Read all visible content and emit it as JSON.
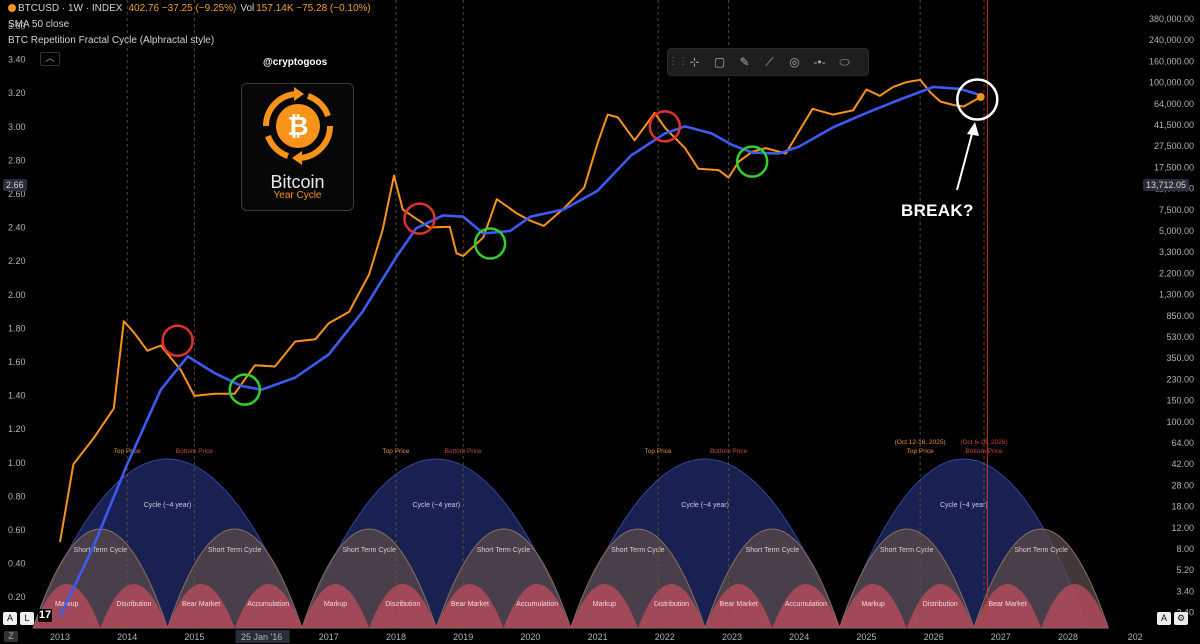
{
  "header": {
    "symbol": "BTCUSD · 1W · INDEX",
    "price": "402.76  −37.25 (−9.25%)",
    "vol_label": "Vol",
    "vol_value": "157.14K  −75.28 (−0.10%)",
    "indicator1": "SMA 50 close",
    "indicator2": "BTC Repetition Fractal Cycle (Alphractal style)"
  },
  "collapse_glyph": "︿",
  "toolbar": {
    "grip": "⋮⋮",
    "tools": [
      {
        "name": "crosshair-icon",
        "glyph": "⊹"
      },
      {
        "name": "rectangle-icon",
        "glyph": "▢"
      },
      {
        "name": "brush-icon",
        "glyph": "✎"
      },
      {
        "name": "trendline-icon",
        "glyph": "⟋"
      },
      {
        "name": "circle-icon",
        "glyph": "◎"
      },
      {
        "name": "horizontal-line-icon",
        "glyph": "-•-"
      },
      {
        "name": "ellipse-icon",
        "glyph": "⬭"
      }
    ]
  },
  "handle": "@cryptogoos",
  "logo": {
    "title": "Bitcoin",
    "subtitle": "Year Cycle",
    "symbol": "₿"
  },
  "annotation": "BREAK?",
  "price_tag": "13,712.05",
  "left_tag": "2.66",
  "corner_labels": {
    "bottom_left_a": "A",
    "bottom_left_l": "L",
    "bottom_right_a": "A",
    "bottom_right_icon": "⚙",
    "tv_logo": "17",
    "bottom_left_z": "Z"
  },
  "chart_data": {
    "type": "line",
    "x_ticks": [
      "2013",
      "2014",
      "2015",
      "25 Jan '16",
      "2017",
      "2018",
      "2019",
      "2020",
      "2021",
      "2022",
      "2023",
      "2024",
      "2025",
      "2026",
      "2027",
      "2028",
      "202"
    ],
    "y_left_ticks": [
      "3.60",
      "3.40",
      "3.20",
      "3.00",
      "2.80",
      "2.60",
      "2.40",
      "2.20",
      "2.00",
      "1.80",
      "1.60",
      "1.40",
      "1.20",
      "1.00",
      "0.80",
      "0.60",
      "0.40",
      "0.20"
    ],
    "y_right_ticks": [
      "380,000.00",
      "240,000.00",
      "160,000.00",
      "100,000.00",
      "64,000.00",
      "41,500.00",
      "27,500.00",
      "17,500.00",
      "11,000.00",
      "7,500.00",
      "5,000.00",
      "3,300.00",
      "2,200.00",
      "1,300.00",
      "850.00",
      "530.00",
      "350.00",
      "230.00",
      "150.00",
      "100.00",
      "64.00",
      "42.00",
      "28.00",
      "18.00",
      "12.00",
      "8.00",
      "5.20",
      "3.40",
      "2.40"
    ],
    "y_scale": "log",
    "series": [
      {
        "name": "BTCUSD",
        "color": "#f7931a",
        "x": [
          2013.0,
          2013.2,
          2013.5,
          2013.8,
          2013.95,
          2014.1,
          2014.3,
          2014.5,
          2014.8,
          2015.0,
          2015.3,
          2015.6,
          2015.9,
          2016.2,
          2016.5,
          2016.8,
          2017.0,
          2017.3,
          2017.6,
          2017.8,
          2017.97,
          2018.1,
          2018.3,
          2018.5,
          2018.8,
          2018.9,
          2019.0,
          2019.3,
          2019.5,
          2019.8,
          2020.0,
          2020.2,
          2020.5,
          2020.8,
          2021.0,
          2021.15,
          2021.3,
          2021.55,
          2021.85,
          2022.0,
          2022.3,
          2022.5,
          2022.8,
          2022.95,
          2023.1,
          2023.3,
          2023.5,
          2023.8,
          2024.0,
          2024.2,
          2024.5,
          2024.8,
          2025.0,
          2025.2,
          2025.4,
          2025.6,
          2025.8,
          2025.95,
          2026.1,
          2026.3,
          2026.45,
          2026.7
        ],
        "y": [
          13,
          60,
          100,
          180,
          1000,
          800,
          560,
          620,
          380,
          230,
          240,
          240,
          420,
          410,
          670,
          700,
          960,
          1200,
          2500,
          6000,
          17500,
          9000,
          7500,
          6300,
          6400,
          3800,
          3600,
          5200,
          11000,
          8300,
          7200,
          6500,
          9200,
          13800,
          33000,
          58000,
          55000,
          35000,
          60000,
          45000,
          30000,
          20000,
          19500,
          16800,
          23000,
          28000,
          30000,
          27000,
          42000,
          65000,
          58000,
          63000,
          95000,
          84000,
          100000,
          110000,
          115000,
          90000,
          75000,
          70000,
          68000,
          82000
        ]
      },
      {
        "name": "SMA 50",
        "color": "#3d5af1",
        "x": [
          2013.0,
          2013.5,
          2014.0,
          2014.5,
          2014.9,
          2015.3,
          2015.7,
          2016.0,
          2016.5,
          2017.0,
          2017.5,
          2018.0,
          2018.3,
          2018.7,
          2019.0,
          2019.3,
          2019.7,
          2020.0,
          2020.5,
          2021.0,
          2021.5,
          2022.0,
          2022.3,
          2022.7,
          2023.0,
          2023.3,
          2023.7,
          2024.0,
          2024.5,
          2025.0,
          2025.5,
          2026.0,
          2026.4,
          2026.7
        ],
        "y": [
          3,
          12,
          60,
          260,
          500,
          360,
          280,
          260,
          330,
          520,
          1200,
          3500,
          6200,
          8000,
          7800,
          5600,
          5900,
          7800,
          9000,
          13000,
          26000,
          40000,
          46000,
          40000,
          32000,
          27500,
          27000,
          31000,
          45000,
          60000,
          78000,
          100000,
          96000,
          85000
        ]
      }
    ],
    "circles": [
      {
        "x": 2014.75,
        "y": 680,
        "color": "red"
      },
      {
        "x": 2015.75,
        "y": 260,
        "color": "green"
      },
      {
        "x": 2018.35,
        "y": 7500,
        "color": "red"
      },
      {
        "x": 2019.4,
        "y": 4600,
        "color": "green"
      },
      {
        "x": 2022.0,
        "y": 46000,
        "color": "red"
      },
      {
        "x": 2023.3,
        "y": 23000,
        "color": "green"
      },
      {
        "x": 2026.65,
        "y": 78000,
        "color": "white"
      }
    ],
    "cycle_markers": [
      {
        "x": 2014.0,
        "label": "Top Price"
      },
      {
        "x": 2015.0,
        "label": "Bottom Price"
      },
      {
        "x": 2018.0,
        "label": "Top Price"
      },
      {
        "x": 2019.0,
        "label": "Bottom Price"
      },
      {
        "x": 2021.9,
        "label": "Top Price"
      },
      {
        "x": 2022.95,
        "label": "Bottom Price"
      },
      {
        "x": 2025.8,
        "label": "Top Price",
        "sub": "(Oct 12-16, 2025)"
      },
      {
        "x": 2026.75,
        "label": "Bottom Price",
        "sub": "(Oct 6-16, 2026)"
      }
    ],
    "cycle_long_label": "Cycle (~4 year)",
    "cycle_short_label": "Short Term Cycle",
    "phases": [
      "Markup",
      "Distribution",
      "Bear Market",
      "Accumulation",
      "Markup",
      "Distribution",
      "Bear Market",
      "Accumulation",
      "Markup",
      "Distribution",
      "Bear Market",
      "Accumulation",
      "Markup",
      "Distribution",
      "Bear Market"
    ],
    "grid": false
  }
}
